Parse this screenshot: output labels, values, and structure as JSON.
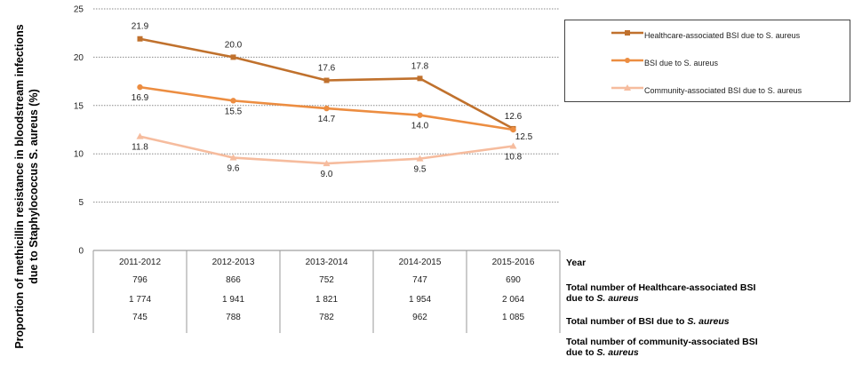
{
  "chart_data": {
    "type": "line",
    "ylabel_line1": "Proportion of methicillin resistance in bloodstream infections",
    "ylabel_line2": "due to Staphylococcus  S. aureus (%)",
    "ylim": [
      0,
      25
    ],
    "yticks": [
      0,
      5,
      10,
      15,
      20,
      25
    ],
    "grid": true,
    "legend_position": "top-right",
    "categories": [
      "2011-2012",
      "2012-2013",
      "2013-2014",
      "2014-2015",
      "2015-2016"
    ],
    "series": [
      {
        "name": "Healthcare-associated BSI due to S. aureus",
        "color": "#c0712d",
        "marker": "square",
        "values": [
          21.9,
          20.0,
          17.6,
          17.8,
          12.6
        ],
        "labels": [
          "21.9",
          "20.0",
          "17.6",
          "17.8",
          "12.6"
        ]
      },
      {
        "name": "BSI due to S. aureus",
        "color": "#ec8d41",
        "marker": "circle",
        "values": [
          16.9,
          15.5,
          14.7,
          14.0,
          12.5
        ],
        "labels": [
          "16.9",
          "15.5",
          "14.7",
          "14.0",
          "12.5"
        ]
      },
      {
        "name": "Community-associated BSI due to S. aureus",
        "color": "#f6bc9e",
        "marker": "triangle",
        "values": [
          11.8,
          9.6,
          9.0,
          9.5,
          10.8
        ],
        "labels": [
          "11.8",
          "9.6",
          "9.0",
          "9.5",
          "10.8"
        ]
      }
    ],
    "table": {
      "year_label": "Year",
      "rows": [
        {
          "label": "Total number of Healthcare-associated BSI",
          "label_line2": "due to ",
          "label_italic": "S. aureus",
          "values": [
            "796",
            "866",
            "752",
            "747",
            "690"
          ]
        },
        {
          "label": "Total number of BSI  due to ",
          "label_italic": "S. aureus",
          "values": [
            "1 774",
            "1 941",
            "1 821",
            "1 954",
            "2 064"
          ]
        },
        {
          "label": "Total number of community-associated BSI",
          "label_line2": "due to ",
          "label_italic": "S. aureus",
          "values": [
            "745",
            "788",
            "782",
            "962",
            "1 085"
          ]
        }
      ]
    }
  }
}
